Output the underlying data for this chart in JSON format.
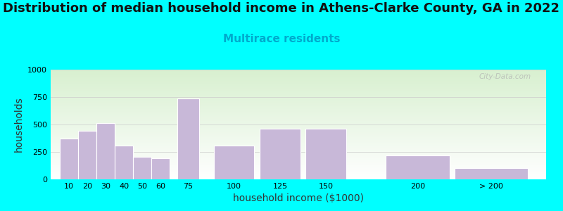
{
  "title": "Distribution of median household income in Athens-Clarke County, GA in 2022",
  "subtitle": "Multirace residents",
  "xlabel": "household income ($1000)",
  "ylabel": "households",
  "bar_labels": [
    "10",
    "20",
    "30",
    "40",
    "50",
    "60",
    "75",
    "100",
    "125",
    "150",
    "200",
    "> 200"
  ],
  "bar_values": [
    370,
    440,
    510,
    310,
    205,
    195,
    740,
    310,
    460,
    460,
    215,
    100
  ],
  "bar_positions": [
    10,
    20,
    30,
    40,
    50,
    60,
    75,
    100,
    125,
    150,
    200,
    240
  ],
  "bar_widths": [
    10,
    10,
    10,
    10,
    10,
    10,
    12,
    22,
    22,
    22,
    35,
    40
  ],
  "bar_color": "#c8b8d8",
  "bar_edgecolor": "#ffffff",
  "ylim": [
    0,
    1000
  ],
  "yticks": [
    0,
    250,
    500,
    750,
    1000
  ],
  "xlim": [
    0,
    270
  ],
  "bg_outer": "#00ffff",
  "bg_top_color": "#d8f0d0",
  "bg_bottom_color": "#ffffff",
  "title_fontsize": 13,
  "subtitle_fontsize": 11,
  "subtitle_color": "#00aacc",
  "axis_label_fontsize": 10,
  "tick_fontsize": 8,
  "watermark": "City-Data.com"
}
